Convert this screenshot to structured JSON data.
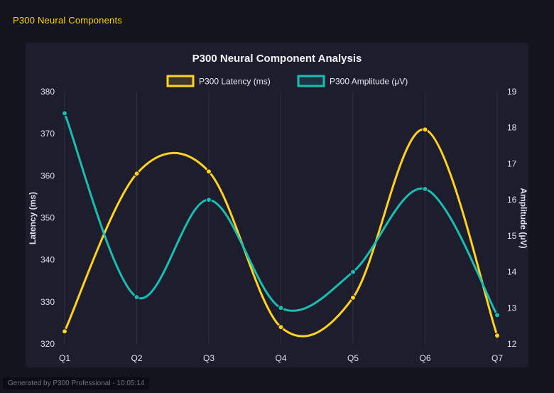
{
  "page": {
    "title": "P300 Neural Components",
    "footer": "Generated by P300 Professional - 10:05:14"
  },
  "chart": {
    "title": "P300 Neural Component Analysis"
  },
  "colors": {
    "background": "#14141f",
    "panel": "#1d1d2e",
    "accent_text": "#ffd400",
    "latency": "#ffd21e",
    "amplitude": "#19bdb2",
    "gridline": "rgba(255,255,255,0.09)"
  },
  "chart_data": {
    "type": "line",
    "categories": [
      "Q1",
      "Q2",
      "Q3",
      "Q4",
      "Q5",
      "Q6",
      "Q7"
    ],
    "series": [
      {
        "name": "P300 Latency (ms)",
        "axis": "left",
        "color": "#ffd21e",
        "values": [
          323,
          360.5,
          361,
          324,
          331,
          371,
          322
        ]
      },
      {
        "name": "P300 Amplitude (μV)",
        "axis": "right",
        "color": "#19bdb2",
        "values": [
          18.4,
          13.3,
          16,
          13,
          14,
          16.3,
          12.8
        ]
      }
    ],
    "left_axis": {
      "label": "Latency (ms)",
      "min": 320,
      "max": 380,
      "step": 10
    },
    "right_axis": {
      "label": "Amplitude (μV)",
      "min": 12,
      "max": 19,
      "step": 1
    },
    "legend_position": "top",
    "grid": "vertical",
    "line_style": "smooth",
    "point_markers": true
  }
}
